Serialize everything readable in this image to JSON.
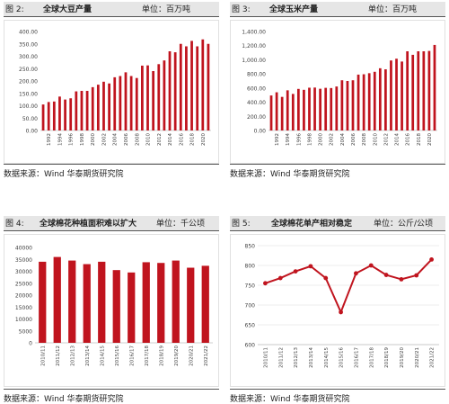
{
  "panels": [
    {
      "fig": "图 2:",
      "title": "全球大豆产量",
      "unit": "单位：百万吨",
      "source": "数据来源：Wind 华泰期货研究院"
    },
    {
      "fig": "图 3:",
      "title": "全球玉米产量",
      "unit": "单位：百万吨",
      "source": "数据来源：Wind 华泰期货研究院"
    },
    {
      "fig": "图 4:",
      "title": "全球棉花种植面积难以扩大",
      "unit": "单位：千公顷",
      "source": "数据来源：Wind 华泰期货研究院"
    },
    {
      "fig": "图 5:",
      "title": "全球棉花单产相对稳定",
      "unit": "单位：公斤/公顷",
      "source": "数据来源：Wind 华泰期货研究院"
    }
  ],
  "colors": {
    "series": "#c0141e",
    "axis": "#bfbfbf",
    "tick": "#404040"
  },
  "chart_data": [
    {
      "type": "bar",
      "title": "全球大豆产量",
      "ylabel": "单位：百万吨",
      "ylim": [
        0,
        400
      ],
      "yticks": [
        "0.00",
        "50.00",
        "100.00",
        "150.00",
        "200.00",
        "250.00",
        "300.00",
        "350.00",
        "400.00"
      ],
      "ytick_values": [
        0,
        50,
        100,
        150,
        200,
        250,
        300,
        350,
        400
      ],
      "x": [
        1991,
        1992,
        1993,
        1994,
        1995,
        1996,
        1997,
        1998,
        1999,
        2000,
        2001,
        2002,
        2003,
        2004,
        2005,
        2006,
        2007,
        2008,
        2009,
        2010,
        2011,
        2012,
        2013,
        2014,
        2015,
        2016,
        2017,
        2018,
        2019,
        2020,
        2021
      ],
      "xtick_labels": [
        "1992",
        "1994",
        "1996",
        "1998",
        "2000",
        "2002",
        "2004",
        "2006",
        "2008",
        "2010",
        "2012",
        "2014",
        "2016",
        "2018",
        "2020"
      ],
      "xtick_indices": [
        1,
        3,
        5,
        7,
        9,
        11,
        13,
        15,
        17,
        19,
        21,
        23,
        25,
        27,
        29
      ],
      "values": [
        105,
        115,
        117,
        137,
        125,
        130,
        158,
        160,
        160,
        175,
        185,
        197,
        190,
        215,
        220,
        235,
        220,
        212,
        262,
        263,
        240,
        268,
        283,
        320,
        316,
        350,
        340,
        362,
        340,
        368,
        350
      ],
      "grid": false
    },
    {
      "type": "bar",
      "title": "全球玉米产量",
      "ylabel": "单位：百万吨",
      "ylim": [
        0,
        1400
      ],
      "yticks": [
        "0.00",
        "200.00",
        "400.00",
        "600.00",
        "800.00",
        "1,000.00",
        "1,200.00",
        "1,400.00"
      ],
      "ytick_values": [
        0,
        200,
        400,
        600,
        800,
        1000,
        1200,
        1400
      ],
      "x": [
        1991,
        1992,
        1993,
        1994,
        1995,
        1996,
        1997,
        1998,
        1999,
        2000,
        2001,
        2002,
        2003,
        2004,
        2005,
        2006,
        2007,
        2008,
        2009,
        2010,
        2011,
        2012,
        2013,
        2014,
        2015,
        2016,
        2017,
        2018,
        2019,
        2020,
        2021
      ],
      "xtick_labels": [
        "1992",
        "1994",
        "1996",
        "1998",
        "2000",
        "2002",
        "2004",
        "2006",
        "2008",
        "2010",
        "2012",
        "2014",
        "2016",
        "2018",
        "2020"
      ],
      "xtick_indices": [
        1,
        3,
        5,
        7,
        9,
        11,
        13,
        15,
        17,
        19,
        21,
        23,
        25,
        27,
        29
      ],
      "values": [
        495,
        540,
        475,
        568,
        517,
        588,
        575,
        605,
        607,
        590,
        603,
        600,
        622,
        710,
        700,
        710,
        790,
        795,
        810,
        830,
        880,
        865,
        990,
        1015,
        975,
        1120,
        1070,
        1120,
        1120,
        1125,
        1210
      ],
      "grid": false
    },
    {
      "type": "bar",
      "title": "全球棉花种植面积难以扩大",
      "ylabel": "单位：千公顷",
      "ylim": [
        0,
        40000
      ],
      "yticks": [
        "0",
        "5000",
        "10000",
        "15000",
        "20000",
        "25000",
        "30000",
        "35000",
        "40000"
      ],
      "ytick_values": [
        0,
        5000,
        10000,
        15000,
        20000,
        25000,
        30000,
        35000,
        40000
      ],
      "categories": [
        "2010/11",
        "2011/12",
        "2012/13",
        "2013/14",
        "2014/15",
        "2015/16",
        "2016/17",
        "2017/18",
        "2018/19",
        "2019/20",
        "2020/21",
        "2021/22"
      ],
      "values": [
        34000,
        36000,
        34500,
        33000,
        34000,
        30500,
        29500,
        33800,
        33500,
        34500,
        31500,
        32300
      ],
      "grid": false
    },
    {
      "type": "line",
      "title": "全球棉花单产相对稳定",
      "ylabel": "单位：公斤/公顷",
      "ylim": [
        600,
        850
      ],
      "yticks": [
        "600",
        "650",
        "700",
        "750",
        "800",
        "850"
      ],
      "ytick_values": [
        600,
        650,
        700,
        750,
        800,
        850
      ],
      "categories": [
        "2010/11",
        "2011/12",
        "2012/13",
        "2013/14",
        "2014/15",
        "2015/16",
        "2016/17",
        "2017/18",
        "2018/19",
        "2019/20",
        "2020/21",
        "2021/22"
      ],
      "values": [
        755,
        768,
        785,
        798,
        768,
        682,
        780,
        800,
        776,
        765,
        775,
        815
      ],
      "grid": true
    }
  ]
}
